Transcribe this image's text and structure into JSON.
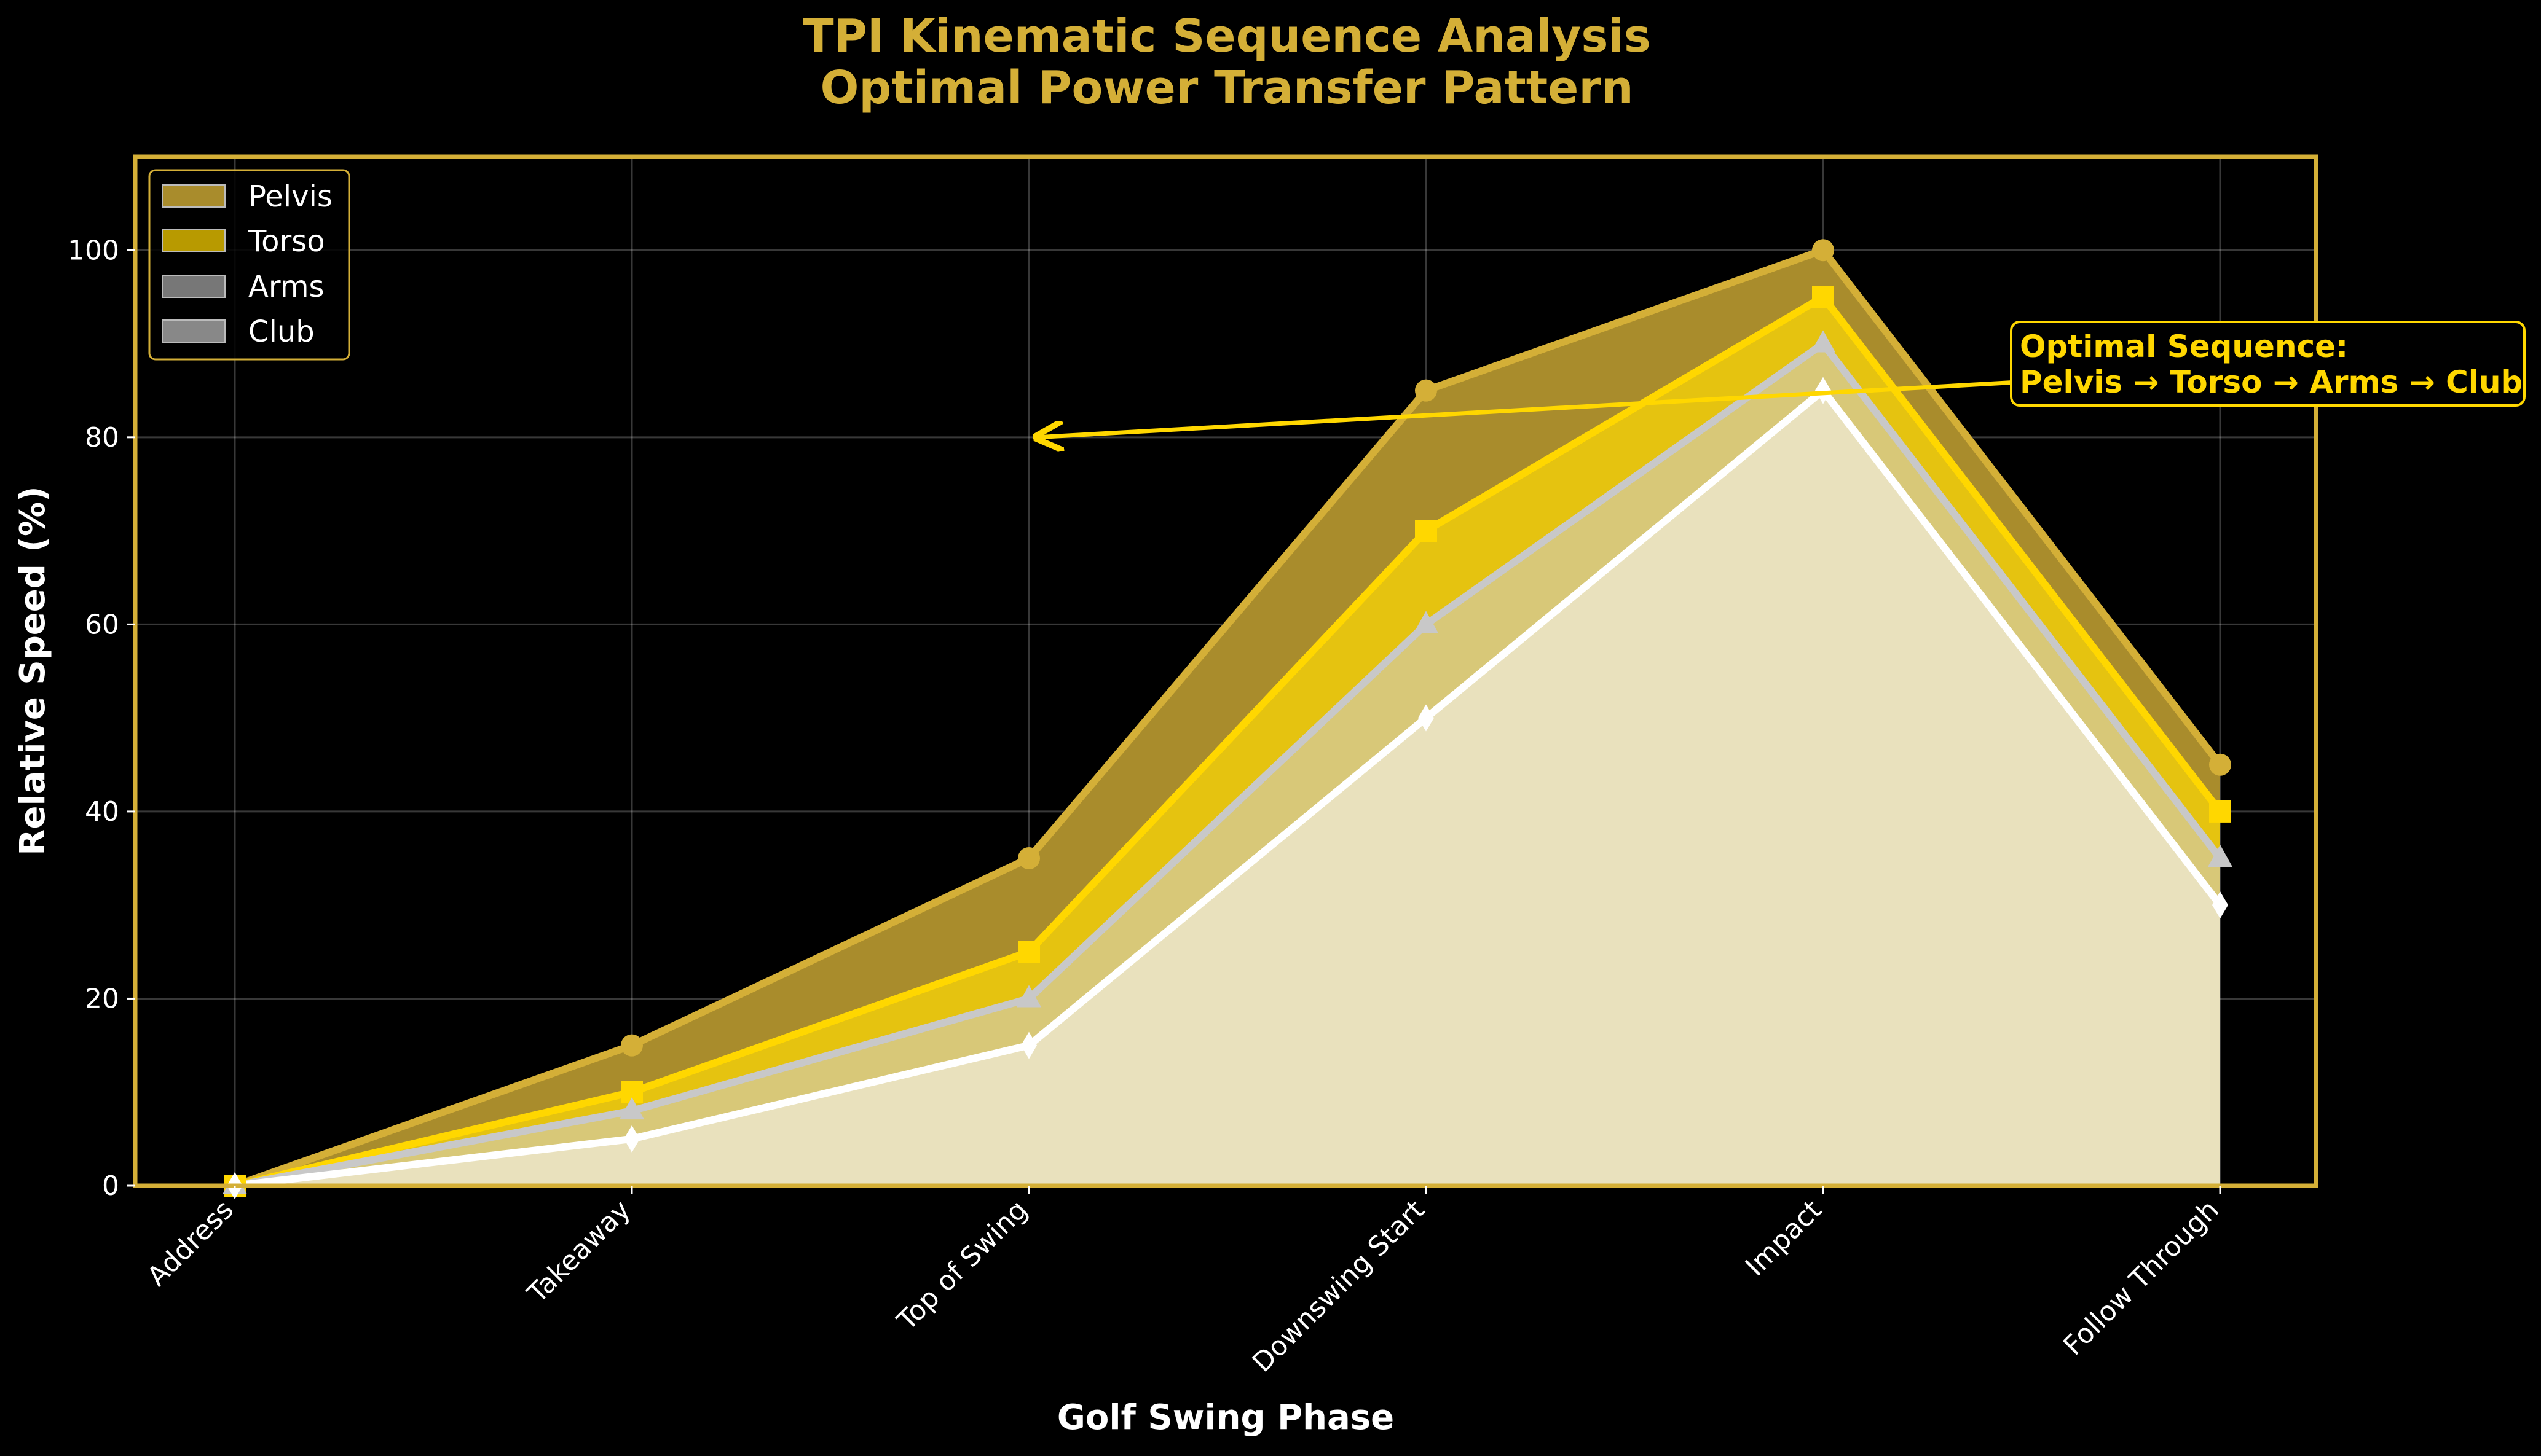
{
  "chart_data": {
    "type": "area",
    "title_lines": [
      "TPI Kinematic Sequence Analysis",
      "Optimal Power Transfer Pattern"
    ],
    "xlabel": "Golf Swing Phase",
    "ylabel": "Relative Speed (%)",
    "categories": [
      "Address",
      "Takeaway",
      "Top of Swing",
      "Downswing Start",
      "Impact",
      "Follow Through"
    ],
    "ylim": [
      0,
      110
    ],
    "yticks": [
      0,
      20,
      40,
      60,
      80,
      100
    ],
    "grid": true,
    "legend_position": "upper-left",
    "series": [
      {
        "name": "Pelvis",
        "values": [
          0,
          15,
          35,
          85,
          100,
          45
        ],
        "color": "#D4AF37",
        "fill": "#A98C2C",
        "marker": "circle"
      },
      {
        "name": "Torso",
        "values": [
          0,
          10,
          25,
          70,
          95,
          40
        ],
        "color": "#FFD700",
        "fill": "#E5C310",
        "marker": "square"
      },
      {
        "name": "Arms",
        "values": [
          0,
          8,
          20,
          60,
          90,
          35
        ],
        "color": "#C8C8C8",
        "fill": "#D8C878",
        "marker": "triangle"
      },
      {
        "name": "Club",
        "values": [
          0,
          5,
          15,
          50,
          85,
          30
        ],
        "color": "#FFFFFF",
        "fill": "#E9E1BD",
        "marker": "diamond"
      }
    ],
    "legend_swatches": {
      "Pelvis": "#A98C2C",
      "Torso": "#B89A00",
      "Arms": "#777777",
      "Club": "#888888"
    },
    "annotation": {
      "lines": [
        "Optimal Sequence:",
        "Pelvis → Torso → Arms → Club"
      ],
      "arrow_to": {
        "category": "Top of Swing",
        "y": 80
      },
      "text_at": {
        "category": "Impact",
        "y": 85
      },
      "color": "#FFD700"
    },
    "frame_color": "#D4AF37",
    "background": "#000000"
  }
}
